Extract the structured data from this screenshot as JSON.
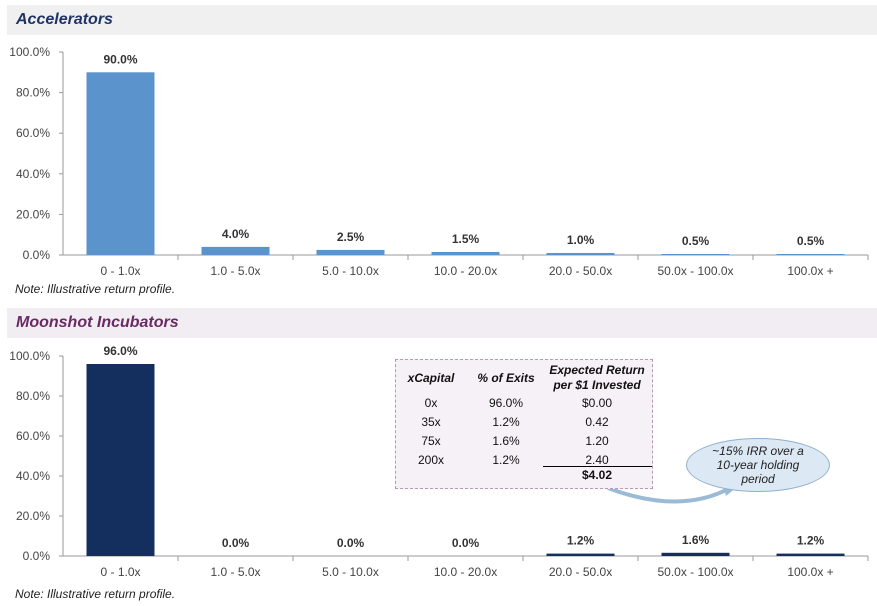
{
  "chart_data": [
    {
      "type": "bar",
      "title": "Accelerators",
      "categories": [
        "0 - 1.0x",
        "1.0 - 5.0x",
        "5.0 - 10.0x",
        "10.0 - 20.0x",
        "20.0 - 50.0x",
        "50.0x - 100.0x",
        "100.0x +"
      ],
      "values": [
        90.0,
        4.0,
        2.5,
        1.5,
        1.0,
        0.5,
        0.5
      ],
      "labels": [
        "90.0%",
        "4.0%",
        "2.5%",
        "1.5%",
        "1.0%",
        "0.5%",
        "0.5%"
      ],
      "yticks": [
        "0.0%",
        "20.0%",
        "40.0%",
        "60.0%",
        "80.0%",
        "100.0%"
      ],
      "ylim": [
        0,
        100
      ],
      "color": "#5b93cc",
      "note": "Note: Illustrative return profile."
    },
    {
      "type": "bar",
      "title": "Moonshot Incubators",
      "categories": [
        "0 - 1.0x",
        "1.0 - 5.0x",
        "5.0 - 10.0x",
        "10.0 - 20.0x",
        "20.0 - 50.0x",
        "50.0x - 100.0x",
        "100.0x +"
      ],
      "values": [
        96.0,
        0.0,
        0.0,
        0.0,
        1.2,
        1.6,
        1.2
      ],
      "labels": [
        "96.0%",
        "0.0%",
        "0.0%",
        "0.0%",
        "1.2%",
        "1.6%",
        "1.2%"
      ],
      "yticks": [
        "0.0%",
        "20.0%",
        "40.0%",
        "60.0%",
        "80.0%",
        "100.0%"
      ],
      "ylim": [
        0,
        100
      ],
      "color": "#142f5e",
      "note": "Note: Illustrative return profile."
    }
  ],
  "table": {
    "headers": [
      "xCapital",
      "% of Exits",
      "Expected Return",
      "per $1 Invested"
    ],
    "rows": [
      [
        "0x",
        "96.0%",
        "$0.00"
      ],
      [
        "35x",
        "1.2%",
        "0.42"
      ],
      [
        "75x",
        "1.6%",
        "1.20"
      ],
      [
        "200x",
        "1.2%",
        "2.40"
      ]
    ],
    "total": "$4.02"
  },
  "callout": "~15% IRR over a 10-year holding period"
}
